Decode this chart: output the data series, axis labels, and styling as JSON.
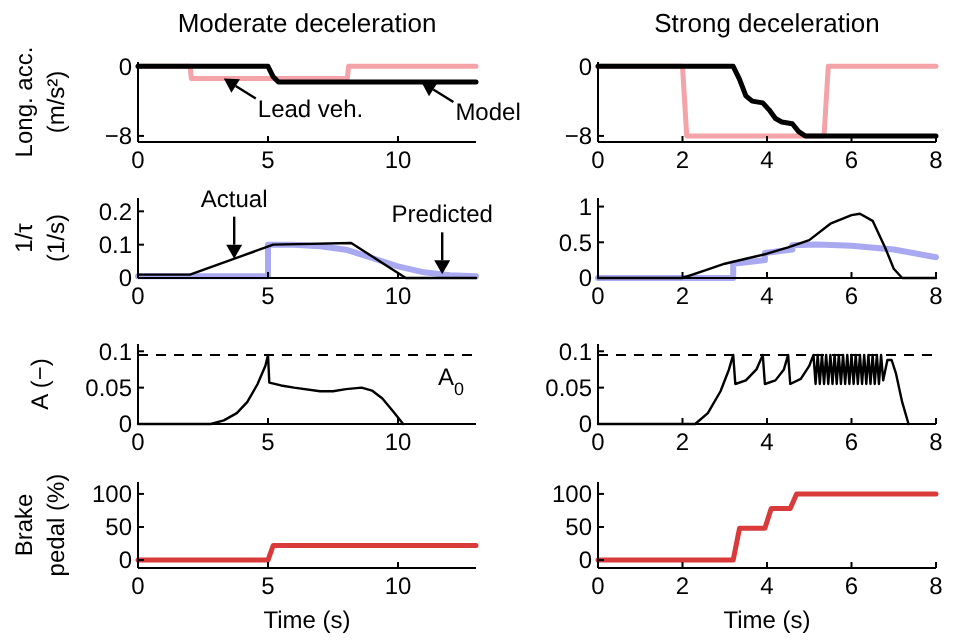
{
  "chart_data": [
    {
      "type": "line",
      "title": "Moderate deceleration",
      "ylabel": "Long. acc.\n(m/s²)",
      "xlim": [
        0,
        13
      ],
      "xticks": [
        0,
        5,
        10
      ],
      "ylim": [
        -8.7,
        0.5
      ],
      "yticks": [
        -8,
        0
      ],
      "series": [
        {
          "color": "#f4a3a8",
          "x": [
            0,
            2,
            2.05,
            8.05,
            8.1,
            13
          ],
          "values": [
            0,
            0,
            -1.4,
            -1.4,
            0,
            0
          ]
        },
        {
          "color": "#000000",
          "x": [
            0,
            5.0,
            5.2,
            5.4,
            13
          ],
          "values": [
            0,
            0,
            -1.2,
            -1.8,
            -1.8
          ]
        }
      ],
      "annotations": [
        {
          "text": "Lead veh.",
          "x": 3.3,
          "y": -1.4
        },
        {
          "text": "Model",
          "x": 10.9,
          "y": -1.8
        }
      ]
    },
    {
      "type": "line",
      "title": "Strong deceleration",
      "xlim": [
        0,
        8
      ],
      "xticks": [
        0,
        2,
        4,
        6,
        8
      ],
      "ylim": [
        -8.7,
        0.5
      ],
      "yticks": [
        -8,
        0
      ],
      "series": [
        {
          "color": "#f4a3a8",
          "x": [
            0,
            2,
            2.1,
            5.35,
            5.45,
            8
          ],
          "values": [
            0,
            0,
            -8,
            -8,
            0,
            0
          ]
        },
        {
          "color": "#000000",
          "x": [
            0,
            3.2,
            3.35,
            3.5,
            3.65,
            3.9,
            4.05,
            4.2,
            4.35,
            4.6,
            4.75,
            4.9,
            8
          ],
          "values": [
            0,
            0,
            -1.5,
            -3.4,
            -4,
            -4.2,
            -5,
            -6,
            -6.4,
            -6.6,
            -7.5,
            -8,
            -8
          ]
        }
      ]
    },
    {
      "type": "line",
      "ylabel": "1/τ\n(1/s)",
      "xlim": [
        0,
        13
      ],
      "xticks": [
        0,
        5,
        10
      ],
      "ylim": [
        0,
        0.24
      ],
      "yticks": [
        0,
        0.1,
        0.2
      ],
      "series": [
        {
          "color": "#a9a9f2",
          "x": [
            0,
            5,
            5,
            5.5,
            6,
            7,
            8,
            9,
            10,
            11,
            12,
            13
          ],
          "values": [
            0.005,
            0.005,
            0.1,
            0.1,
            0.1,
            0.095,
            0.085,
            0.06,
            0.035,
            0.017,
            0.008,
            0.005
          ]
        },
        {
          "color": "#000000",
          "x": [
            0,
            2,
            5.2,
            8.2,
            10.3,
            13
          ],
          "values": [
            0.01,
            0.01,
            0.1,
            0.105,
            0,
            0
          ]
        }
      ],
      "annotations": [
        {
          "text": "Actual",
          "x": 3.7,
          "y": 0.058
        },
        {
          "text": "Predicted",
          "x": 11.7,
          "y": 0.011
        }
      ]
    },
    {
      "type": "line",
      "xlim": [
        0,
        8
      ],
      "xticks": [
        0,
        2,
        4,
        6,
        8
      ],
      "ylim": [
        0,
        1.12
      ],
      "yticks": [
        0,
        0.5,
        1
      ],
      "series": [
        {
          "color": "#a9a9f2",
          "x": [
            0,
            3.2,
            3.2,
            3.95,
            3.95,
            4.6,
            4.6,
            5.2,
            6,
            7,
            8
          ],
          "values": [
            0,
            0,
            0.2,
            0.25,
            0.35,
            0.4,
            0.46,
            0.47,
            0.45,
            0.4,
            0.29
          ]
        },
        {
          "color": "#000000",
          "x": [
            0,
            2,
            2.5,
            3,
            3.5,
            4,
            4.5,
            5,
            5.5,
            6,
            6.2,
            6.5,
            6.8,
            7,
            7.2,
            8
          ],
          "values": [
            0,
            0,
            0.1,
            0.2,
            0.27,
            0.34,
            0.43,
            0.53,
            0.76,
            0.88,
            0.9,
            0.8,
            0.42,
            0.13,
            0,
            0
          ]
        }
      ]
    },
    {
      "type": "line",
      "ylabel": "A (−)",
      "xlim": [
        0,
        13
      ],
      "xticks": [
        0,
        5,
        10
      ],
      "ylim": [
        0,
        0.11
      ],
      "yticks": [
        0,
        0.05,
        0.1
      ],
      "ref_lines": [
        {
          "axis": "y",
          "value": 0.095,
          "label": "A$_{0}$",
          "line_style": "dashed",
          "color": "#000000"
        }
      ],
      "series": [
        {
          "color": "#000000",
          "x": [
            0,
            2.8,
            3.3,
            3.8,
            4.2,
            4.6,
            4.9,
            5.0,
            5.05,
            5.5,
            6,
            7,
            7.5,
            8,
            8.6,
            9.0,
            9.4,
            9.8,
            10.2
          ],
          "values": [
            0,
            0,
            0.005,
            0.015,
            0.03,
            0.055,
            0.08,
            0.095,
            0.057,
            0.053,
            0.05,
            0.045,
            0.045,
            0.048,
            0.05,
            0.046,
            0.035,
            0.018,
            0
          ]
        }
      ]
    },
    {
      "type": "line",
      "xlim": [
        0,
        8
      ],
      "xticks": [
        0,
        2,
        4,
        6,
        8
      ],
      "ylim": [
        0,
        0.11
      ],
      "yticks": [
        0,
        0.05,
        0.1
      ],
      "ref_lines": [
        {
          "axis": "y",
          "value": 0.095,
          "line_style": "dashed",
          "color": "#000000"
        }
      ],
      "series": [
        {
          "color": "#000000",
          "x": [
            0,
            2.3,
            2.6,
            2.9,
            3.1,
            3.2,
            3.25,
            3.5,
            3.75,
            3.9,
            3.95,
            4.2,
            4.4,
            4.5,
            4.55,
            4.8,
            5.0,
            5.1,
            5.15,
            5.2,
            5.25,
            5.3,
            5.35,
            5.4,
            5.45,
            5.5,
            5.55,
            5.6,
            5.65,
            5.7,
            5.75,
            5.8,
            5.85,
            5.9,
            5.95,
            6.0,
            6.05,
            6.1,
            6.15,
            6.2,
            6.25,
            6.3,
            6.35,
            6.4,
            6.45,
            6.5,
            6.55,
            6.6,
            6.65,
            6.7,
            6.75,
            6.85,
            6.95,
            7.05,
            7.2,
            7.35
          ],
          "values": [
            0,
            0,
            0.015,
            0.045,
            0.075,
            0.095,
            0.055,
            0.06,
            0.075,
            0.095,
            0.055,
            0.06,
            0.075,
            0.095,
            0.055,
            0.062,
            0.08,
            0.095,
            0.055,
            0.095,
            0.055,
            0.095,
            0.055,
            0.095,
            0.055,
            0.095,
            0.055,
            0.095,
            0.055,
            0.095,
            0.055,
            0.095,
            0.055,
            0.095,
            0.055,
            0.095,
            0.055,
            0.095,
            0.055,
            0.095,
            0.055,
            0.095,
            0.055,
            0.095,
            0.055,
            0.095,
            0.055,
            0.095,
            0.055,
            0.095,
            0.06,
            0.088,
            0.088,
            0.07,
            0.03,
            0
          ]
        }
      ]
    },
    {
      "type": "line",
      "ylabel": "Brake\npedal (%)",
      "xlabel": "Time (s)",
      "xlim": [
        0,
        13
      ],
      "xticks": [
        0,
        5,
        10
      ],
      "ylim": [
        -12,
        118
      ],
      "yticks": [
        0,
        50,
        100
      ],
      "series": [
        {
          "color": "#d93a3a",
          "x": [
            0,
            5.0,
            5.2,
            13
          ],
          "values": [
            0,
            0,
            22,
            22
          ]
        }
      ]
    },
    {
      "type": "line",
      "xlabel": "Time (s)",
      "xlim": [
        0,
        8
      ],
      "xticks": [
        0,
        2,
        4,
        6,
        8
      ],
      "ylim": [
        -12,
        118
      ],
      "yticks": [
        0,
        50,
        100
      ],
      "series": [
        {
          "color": "#d93a3a",
          "x": [
            0,
            3.2,
            3.35,
            3.95,
            4.1,
            4.55,
            4.7,
            8
          ],
          "values": [
            0,
            0,
            48,
            48,
            78,
            78,
            100,
            100
          ]
        }
      ]
    }
  ]
}
